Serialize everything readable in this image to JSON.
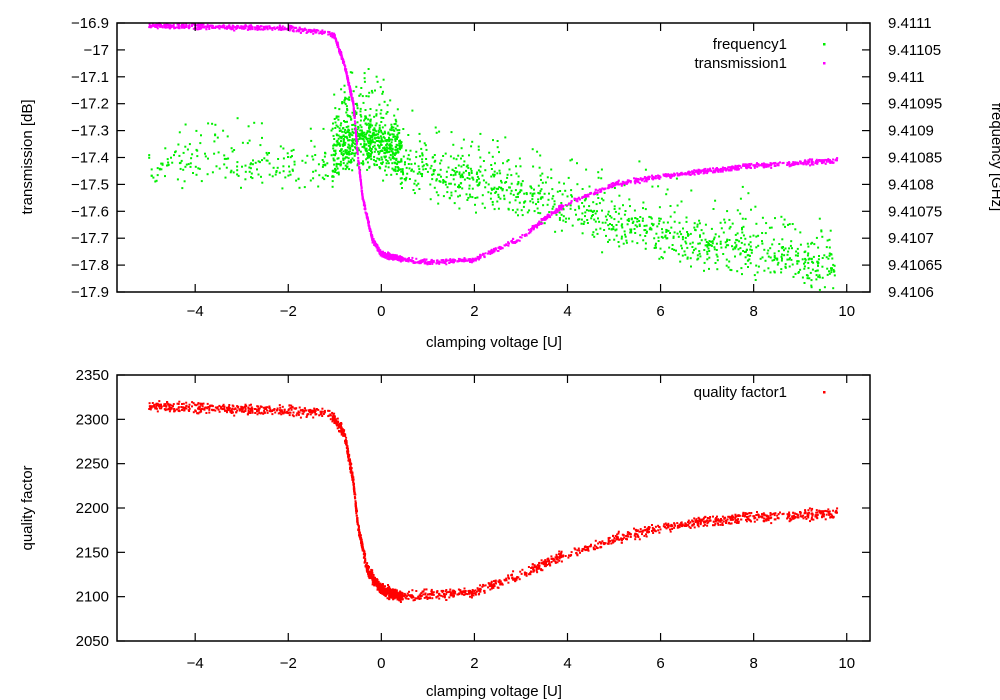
{
  "chart_data": [
    {
      "type": "scatter",
      "xlabel": "clamping voltage [U]",
      "ylabel": "transmission [dB]",
      "y2label": "frequency [GHz]",
      "xlim": [
        -5.68,
        10.5
      ],
      "ylim": [
        -17.9,
        -16.9
      ],
      "y2lim": [
        9.4106,
        9.4111
      ],
      "xticks": [
        "-4",
        "-2",
        "0",
        "2",
        "4",
        "6",
        "8",
        "10"
      ],
      "xtick_values": [
        -4,
        -2,
        0,
        2,
        4,
        6,
        8,
        10
      ],
      "yticks": [
        "-16.9",
        "-17",
        "-17.1",
        "-17.2",
        "-17.3",
        "-17.4",
        "-17.5",
        "-17.6",
        "-17.7",
        "-17.8",
        "-17.9"
      ],
      "ytick_values": [
        -16.9,
        -17,
        -17.1,
        -17.2,
        -17.3,
        -17.4,
        -17.5,
        -17.6,
        -17.7,
        -17.8,
        -17.9
      ],
      "y2ticks": [
        "9.4111",
        "9.41105",
        "9.411",
        "9.41095",
        "9.4109",
        "9.41085",
        "9.4108",
        "9.41075",
        "9.4107",
        "9.41065",
        "9.4106"
      ],
      "y2tick_values": [
        9.4111,
        9.41105,
        9.411,
        9.41095,
        9.4109,
        9.41085,
        9.4108,
        9.41075,
        9.4107,
        9.41065,
        9.4106
      ],
      "legend_position": "top-right",
      "series": [
        {
          "name": "frequency1",
          "axis": "y2",
          "color": "#00ee00",
          "x": [
            -5,
            -3,
            -1.05,
            -1,
            -0.5,
            0,
            0.4,
            0.45,
            2,
            4,
            6,
            8,
            9.8
          ],
          "y": [
            9.41083,
            9.41083,
            9.41083,
            9.41086,
            9.41088,
            9.41087,
            9.41086,
            9.41083,
            9.4108,
            9.41075,
            9.4107,
            9.41067,
            9.41064
          ],
          "spread": [
            6e-05,
            6e-05,
            6e-05,
            8e-05,
            8e-05,
            8e-05,
            8e-05,
            7e-05,
            7e-05,
            7e-05,
            7e-05,
            7e-05,
            7e-05
          ]
        },
        {
          "name": "transmission1",
          "axis": "y",
          "color": "#ff00ff",
          "x": [
            -5,
            -2,
            -1.2,
            -1,
            -0.8,
            -0.6,
            -0.5,
            -0.4,
            -0.2,
            0,
            0.5,
            1,
            2,
            3,
            3.5,
            4,
            5,
            6,
            7,
            8,
            9,
            9.8
          ],
          "y": [
            -16.91,
            -16.92,
            -16.935,
            -16.95,
            -17.05,
            -17.2,
            -17.4,
            -17.55,
            -17.7,
            -17.76,
            -17.78,
            -17.79,
            -17.78,
            -17.7,
            -17.63,
            -17.57,
            -17.5,
            -17.47,
            -17.45,
            -17.43,
            -17.42,
            -17.41
          ],
          "spread": 0.008
        }
      ]
    },
    {
      "type": "scatter",
      "xlabel": "clamping voltage [U]",
      "ylabel": "quality factor",
      "xlim": [
        -5.68,
        10.5
      ],
      "ylim": [
        2050,
        2350
      ],
      "xticks": [
        "-4",
        "-2",
        "0",
        "2",
        "4",
        "6",
        "8",
        "10"
      ],
      "xtick_values": [
        -4,
        -2,
        0,
        2,
        4,
        6,
        8,
        10
      ],
      "yticks": [
        "2350",
        "2300",
        "2250",
        "2200",
        "2150",
        "2100",
        "2050"
      ],
      "ytick_values": [
        2350,
        2300,
        2250,
        2200,
        2150,
        2100,
        2050
      ],
      "legend_position": "top-right",
      "series": [
        {
          "name": "quality factor1",
          "color": "#ff0000",
          "x": [
            -5,
            -1.2,
            -1,
            -0.8,
            -0.6,
            -0.5,
            -0.3,
            0,
            0.4,
            1,
            2,
            3,
            4,
            5,
            6,
            7,
            8,
            9,
            9.8
          ],
          "y": [
            2315,
            2308,
            2300,
            2285,
            2230,
            2180,
            2130,
            2108,
            2100,
            2102,
            2105,
            2125,
            2148,
            2165,
            2178,
            2185,
            2190,
            2192,
            2195
          ],
          "spread": 5
        }
      ]
    }
  ]
}
